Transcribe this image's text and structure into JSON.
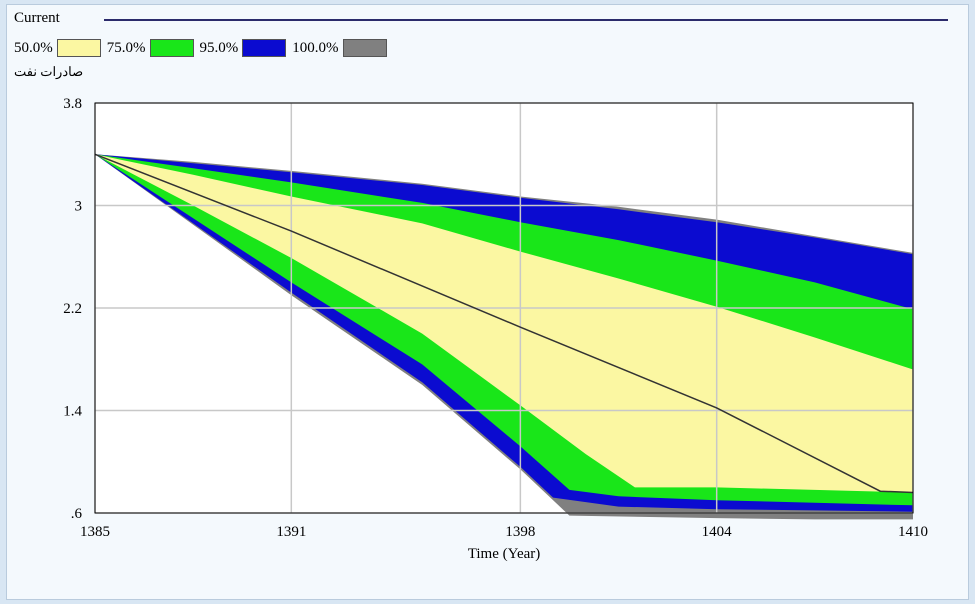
{
  "header": {
    "title": "Current",
    "variable_label": "صادرات نفت"
  },
  "legend": [
    {
      "label": "50.0%",
      "color": "#fbf7a2"
    },
    {
      "label": "75.0%",
      "color": "#19e619"
    },
    {
      "label": "95.0%",
      "color": "#0b0bd0"
    },
    {
      "label": "100.0%",
      "color": "#808080"
    }
  ],
  "chart_data": {
    "type": "area",
    "title": "Current",
    "xlabel": "Time (Year)",
    "ylabel": "صادرات نفت",
    "xlim": [
      1385,
      1410
    ],
    "ylim": [
      0.6,
      3.8
    ],
    "x_ticks": [
      "1385",
      "1391",
      "1398",
      "1404",
      "1410"
    ],
    "y_ticks": [
      ".6",
      "1.4",
      "2.2",
      "3",
      "3.8"
    ],
    "grid": true,
    "legend_position": "top",
    "bands": [
      {
        "name": "100.0%",
        "color": "#808080",
        "upper": [
          [
            1385,
            3.4
          ],
          [
            1388,
            3.34
          ],
          [
            1391,
            3.27
          ],
          [
            1395,
            3.17
          ],
          [
            1398,
            3.07
          ],
          [
            1401,
            2.99
          ],
          [
            1404,
            2.89
          ],
          [
            1407,
            2.76
          ],
          [
            1410,
            2.63
          ]
        ],
        "lower": [
          [
            1385,
            3.4
          ],
          [
            1388,
            2.85
          ],
          [
            1391,
            2.3
          ],
          [
            1395,
            1.6
          ],
          [
            1398,
            0.94
          ],
          [
            1399.5,
            0.58
          ],
          [
            1404,
            0.56
          ],
          [
            1407,
            0.55
          ],
          [
            1410,
            0.55
          ]
        ]
      },
      {
        "name": "95.0%",
        "color": "#0b0bd0",
        "upper": [
          [
            1385,
            3.4
          ],
          [
            1388,
            3.33
          ],
          [
            1391,
            3.26
          ],
          [
            1395,
            3.16
          ],
          [
            1398,
            3.06
          ],
          [
            1401,
            2.97
          ],
          [
            1404,
            2.87
          ],
          [
            1407,
            2.75
          ],
          [
            1410,
            2.62
          ]
        ],
        "lower": [
          [
            1385,
            3.4
          ],
          [
            1388,
            2.86
          ],
          [
            1391,
            2.32
          ],
          [
            1395,
            1.62
          ],
          [
            1398,
            0.96
          ],
          [
            1399,
            0.72
          ],
          [
            1401,
            0.65
          ],
          [
            1404,
            0.63
          ],
          [
            1407,
            0.62
          ],
          [
            1410,
            0.61
          ]
        ]
      },
      {
        "name": "75.0%",
        "color": "#19e619",
        "upper": [
          [
            1385,
            3.4
          ],
          [
            1388,
            3.29
          ],
          [
            1391,
            3.18
          ],
          [
            1395,
            3.02
          ],
          [
            1398,
            2.87
          ],
          [
            1401,
            2.73
          ],
          [
            1404,
            2.57
          ],
          [
            1407,
            2.4
          ],
          [
            1410,
            2.19
          ]
        ],
        "lower": [
          [
            1385,
            3.4
          ],
          [
            1388,
            2.9
          ],
          [
            1391,
            2.4
          ],
          [
            1395,
            1.76
          ],
          [
            1398,
            1.12
          ],
          [
            1399.5,
            0.78
          ],
          [
            1401,
            0.73
          ],
          [
            1404,
            0.7
          ],
          [
            1407,
            0.68
          ],
          [
            1410,
            0.66
          ]
        ]
      },
      {
        "name": "50.0%",
        "color": "#fbf7a2",
        "upper": [
          [
            1385,
            3.4
          ],
          [
            1388,
            3.24
          ],
          [
            1391,
            3.07
          ],
          [
            1395,
            2.86
          ],
          [
            1398,
            2.64
          ],
          [
            1401,
            2.43
          ],
          [
            1404,
            2.21
          ],
          [
            1407,
            1.97
          ],
          [
            1410,
            1.72
          ]
        ],
        "lower": [
          [
            1385,
            3.4
          ],
          [
            1388,
            3.0
          ],
          [
            1391,
            2.59
          ],
          [
            1395,
            2.0
          ],
          [
            1398,
            1.44
          ],
          [
            1400,
            1.06
          ],
          [
            1401.5,
            0.8
          ],
          [
            1404,
            0.8
          ],
          [
            1407,
            0.78
          ],
          [
            1410,
            0.76
          ]
        ]
      }
    ],
    "series": [
      {
        "name": "Current",
        "color": "#333333",
        "points": [
          [
            1385,
            3.4
          ],
          [
            1391,
            2.8
          ],
          [
            1398,
            2.05
          ],
          [
            1404,
            1.42
          ],
          [
            1409,
            0.77
          ],
          [
            1410,
            0.76
          ]
        ]
      }
    ]
  }
}
